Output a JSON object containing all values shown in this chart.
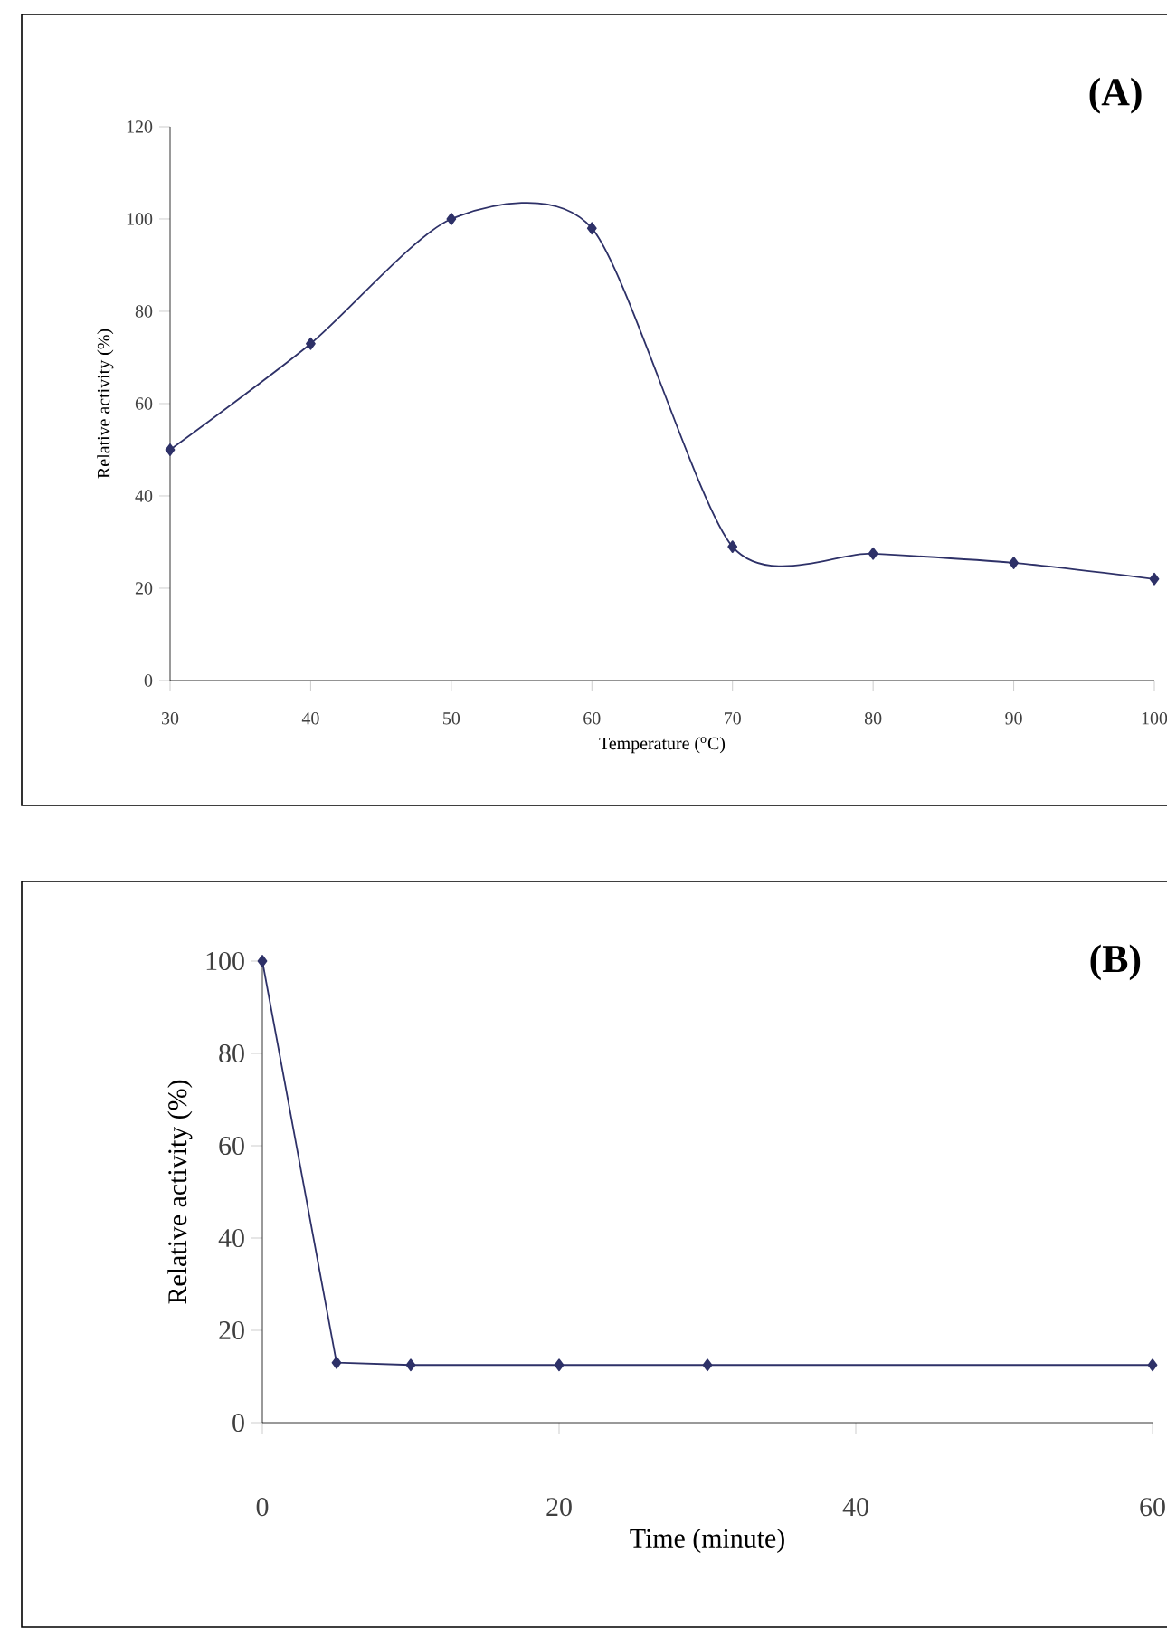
{
  "chart_data": [
    {
      "type": "line",
      "annotations": [
        "(A)"
      ],
      "xlabel": "Temperature ($^{o}$C)",
      "ylabel": "Relative activity (%)",
      "x": [
        30,
        40,
        50,
        60,
        70,
        80,
        90,
        100
      ],
      "series": [
        {
          "color": "#2e3168",
          "values": [
            50,
            73,
            100,
            98,
            29,
            27.5,
            25.5,
            22
          ]
        }
      ],
      "xlim": [
        30,
        100
      ],
      "xticks": [
        30,
        40,
        50,
        60,
        70,
        80,
        90,
        100
      ],
      "ylim": [
        0,
        120
      ],
      "yticks": [
        0,
        20,
        40,
        60,
        80,
        100,
        120
      ],
      "marker": "diamond",
      "grid": false
    },
    {
      "type": "line",
      "annotations": [
        "(B)"
      ],
      "xlabel": "Time (minute)",
      "ylabel": "Relative activity (%)",
      "x": [
        0,
        5,
        10,
        20,
        30,
        60
      ],
      "series": [
        {
          "color": "#2e3168",
          "values": [
            100,
            13,
            12.5,
            12.5,
            12.5,
            12.5
          ]
        }
      ],
      "xlim": [
        0,
        60
      ],
      "xticks": [
        0,
        20,
        40,
        60
      ],
      "ylim": [
        0,
        100
      ],
      "yticks": [
        0,
        20,
        40,
        60,
        80,
        100
      ],
      "marker": "diamond",
      "grid": false
    }
  ]
}
